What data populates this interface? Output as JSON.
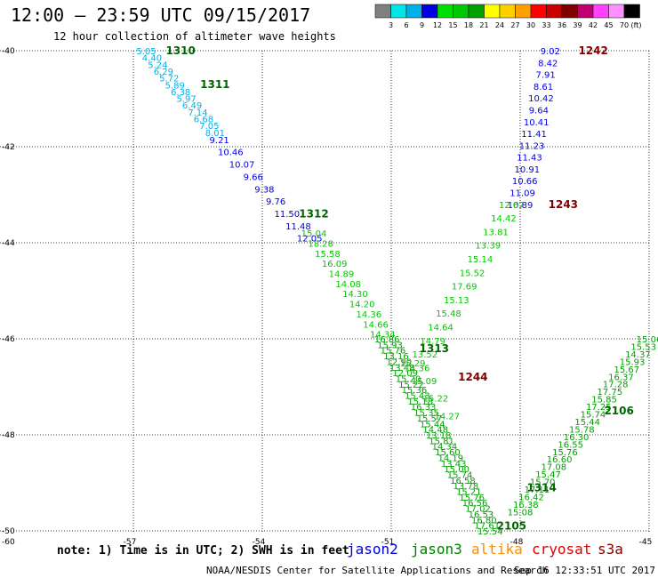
{
  "header": {
    "title": "12:00 – 23:59 UTC 09/15/2017",
    "subtitle": "12 hour collection of altimeter wave heights"
  },
  "colorbar": {
    "labels": [
      "3",
      "6",
      "9",
      "12",
      "15",
      "18",
      "21",
      "24",
      "27",
      "30",
      "33",
      "36",
      "39",
      "42",
      "45",
      "70",
      "(ft)"
    ],
    "colors": [
      "#808080",
      "#00e5e5",
      "#00b0e8",
      "#0000e0",
      "#00e000",
      "#00c800",
      "#00a000",
      "#ffff00",
      "#ffd000",
      "#ffa000",
      "#ff0000",
      "#c80000",
      "#800000",
      "#c00070",
      "#ff40ff",
      "#ff90ff",
      "#000000"
    ]
  },
  "note": "note:  1) Time is in UTC;  2) SWH is in feet",
  "missions": [
    {
      "name": "jason2",
      "color": "#0000e0"
    },
    {
      "name": "jason3",
      "color": "#008000"
    },
    {
      "name": "altika",
      "color": "#ff8c00"
    },
    {
      "name": "cryosat",
      "color": "#e00000"
    },
    {
      "name": "s3a",
      "color": "#800000"
    }
  ],
  "footer": {
    "left": "NOAA/NESDIS Center for Satellite Applications and Research",
    "right": "Sep 16 12:33:51 UTC 2017"
  },
  "chart_data": {
    "type": "scatter",
    "xlim": [
      -60,
      -45
    ],
    "ylim": [
      -50,
      -40
    ],
    "x_ticks": [
      -57,
      -54,
      -51,
      -48,
      -45
    ],
    "x_tick_labels": [
      "-57",
      "-54",
      "-51",
      "-48",
      "-45"
    ],
    "y_ticks": [
      -40,
      -42,
      -44,
      -46,
      -48,
      -50
    ],
    "y_tick_labels": [
      "-40",
      "-42",
      "-44",
      "-46",
      "-48",
      "-50"
    ],
    "corner_label": "-60",
    "pass_labels": [
      {
        "text": "1310",
        "lon": -55.9,
        "lat": -40.0,
        "color": "#006400"
      },
      {
        "text": "1311",
        "lon": -55.1,
        "lat": -40.7,
        "color": "#006400"
      },
      {
        "text": "1312",
        "lon": -52.8,
        "lat": -43.4,
        "color": "#006400"
      },
      {
        "text": "1313",
        "lon": -50.0,
        "lat": -46.2,
        "color": "#006400"
      },
      {
        "text": "1314",
        "lon": -47.5,
        "lat": -49.1,
        "color": "#006400"
      },
      {
        "text": "1242",
        "lon": -46.3,
        "lat": -40.0,
        "color": "#800000"
      },
      {
        "text": "1243",
        "lon": -47.0,
        "lat": -43.2,
        "color": "#800000"
      },
      {
        "text": "1244",
        "lon": -49.1,
        "lat": -46.8,
        "color": "#800000"
      },
      {
        "text": "2106",
        "lon": -45.7,
        "lat": -47.5,
        "color": "#006400"
      },
      {
        "text": "2105",
        "lon": -48.2,
        "lat": -49.9,
        "color": "#006400"
      }
    ],
    "tracks": [
      {
        "start": [
          -56.7,
          -40.0
        ],
        "end": [
          -55.1,
          -41.7
        ],
        "color": "#00b0e8",
        "values": [
          "5.05",
          "4.40",
          "5.24",
          "6.29",
          "5.72",
          "5.89",
          "6.38",
          "5.97",
          "6.49",
          "7.14",
          "6.68",
          "7.05",
          "8.01"
        ]
      },
      {
        "start": [
          -55.0,
          -41.85
        ],
        "end": [
          -52.9,
          -43.9
        ],
        "color": "#0000e0",
        "values": [
          "9.21",
          "10.46",
          "10.07",
          "9.66",
          "9.38",
          "9.76",
          "11.50",
          "11.48",
          "12.05"
        ]
      },
      {
        "start": [
          -52.8,
          -43.8
        ],
        "end": [
          -51.2,
          -45.9
        ],
        "color": "#00c800",
        "values": [
          "15.04",
          "18.28",
          "15.58",
          "16.09",
          "14.89",
          "14.08",
          "14.30",
          "14.20",
          "14.36",
          "14.66",
          "14.34"
        ]
      },
      {
        "start": [
          -51.1,
          -46.0
        ],
        "end": [
          -48.7,
          -50.0
        ],
        "color": "#00a000",
        "values": [
          "16.86",
          "15.93",
          "15.76",
          "13.16",
          "12.90",
          "13.48",
          "12.09",
          "15.20",
          "15.22",
          "15.36",
          "15.43",
          "15.18",
          "16.33",
          "15.35",
          "15.57",
          "15.44",
          "14.48",
          "13.18",
          "15.81",
          "14.34",
          "15.60",
          "14.19",
          "13.43",
          "15.00",
          "15.74",
          "16.58",
          "13.78",
          "15.21",
          "15.76",
          "16.56",
          "17.02",
          "16.53",
          "16.80",
          "17.61",
          "15.54"
        ]
      },
      {
        "start": [
          -47.3,
          -40.0
        ],
        "end": [
          -48.0,
          -43.2
        ],
        "color": "#0000e0",
        "values": [
          "9.02",
          "8.42",
          "7.91",
          "8.61",
          "10.42",
          "9.64",
          "10.41",
          "11.41",
          "11.23",
          "11.43",
          "10.91",
          "10.66",
          "11.09",
          "10.89"
        ]
      },
      {
        "start": [
          -48.2,
          -43.2
        ],
        "end": [
          -50.4,
          -46.6
        ],
        "color": "#00c800",
        "values": [
          "12.67",
          "14.42",
          "13.81",
          "13.39",
          "15.14",
          "15.52",
          "17.69",
          "15.13",
          "15.48",
          "14.64",
          "14.79",
          "13.52",
          "14.36"
        ]
      },
      {
        "start": [
          -50.5,
          -46.5
        ],
        "end": [
          -49.7,
          -47.6
        ],
        "color": "#00c800",
        "values": [
          "15.29",
          "15.09",
          "15.22",
          "14.27"
        ]
      },
      {
        "start": [
          -45.0,
          -46.0
        ],
        "end": [
          -48.0,
          -49.6
        ],
        "color": "#00a000",
        "values": [
          "15.06",
          "15.53",
          "14.37",
          "15.93",
          "15.67",
          "16.37",
          "17.28",
          "17.75",
          "15.85",
          "17.25",
          "15.74",
          "15.44",
          "15.78",
          "16.30",
          "16.55",
          "15.76",
          "16.60",
          "17.08",
          "15.47",
          "15.70",
          "17.11",
          "16.42",
          "16.38",
          "15.08"
        ]
      }
    ]
  }
}
